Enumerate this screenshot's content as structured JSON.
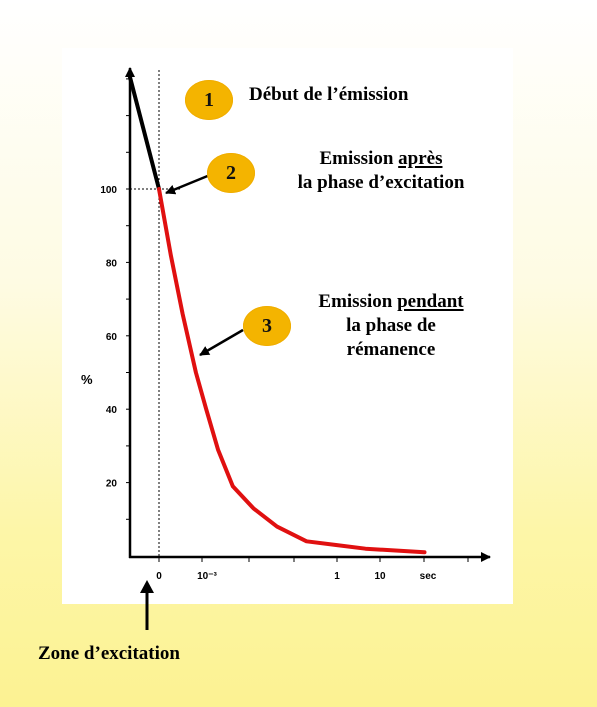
{
  "chart_data": {
    "type": "line",
    "title": "",
    "xlabel": "",
    "ylabel": "%",
    "x_tick_labels": [
      "0",
      "10⁻³",
      "1",
      "10",
      "sec"
    ],
    "y_ticks": [
      20,
      40,
      60,
      80,
      100
    ],
    "ylim": [
      0,
      140
    ],
    "reference_line_y": 100,
    "grid": false,
    "colors": {
      "excitation": "#000000",
      "remanence": "#e01010",
      "bubble": "#f4b400"
    },
    "series": [
      {
        "segment": "excitation",
        "points": [
          [
            -1,
            131
          ],
          [
            0,
            100
          ]
        ]
      },
      {
        "segment": "remanence",
        "points": [
          [
            0,
            100
          ],
          [
            0.4,
            82
          ],
          [
            0.8,
            66
          ],
          [
            1.25,
            50
          ],
          [
            1.6,
            40
          ],
          [
            2.0,
            29
          ],
          [
            2.5,
            19
          ],
          [
            3.2,
            13
          ],
          [
            4.0,
            8
          ],
          [
            5.0,
            4
          ],
          [
            6.0,
            3
          ],
          [
            7.0,
            2
          ],
          [
            9.0,
            1
          ]
        ]
      }
    ]
  },
  "annotations": [
    {
      "number": "1",
      "lines": [
        "Début de l’émission"
      ]
    },
    {
      "number": "2",
      "lines": [
        "Emission ",
        "après",
        "la phase d’excitation"
      ]
    },
    {
      "number": "3",
      "lines": [
        "Emission ",
        "pendant",
        "la phase de",
        "rémanence"
      ]
    }
  ],
  "zone_label": "Zone d’excitation",
  "icons": [
    "up-arrow-icon",
    "annotation-arrow-icon"
  ]
}
